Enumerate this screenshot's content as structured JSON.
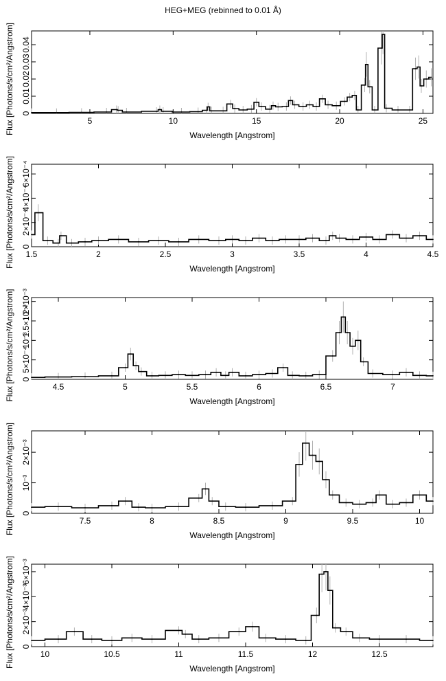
{
  "title": "HEG+MEG (rebinned to 0.01 Å)",
  "chart_data": [
    {
      "type": "line",
      "title": "HEG+MEG (rebinned to 0.01 Å)",
      "xlabel": "Wavelength [Angstrom]",
      "ylabel": "Flux [Photons/s/cm²/Angstrom]",
      "xlim": [
        1.5,
        25.6
      ],
      "ylim": [
        0,
        0.048
      ],
      "xticks": [
        5,
        10,
        15,
        20,
        25
      ],
      "xtick_labels": [
        "5",
        "10",
        "15",
        "20",
        "25"
      ],
      "yticks": [
        0,
        0.01,
        0.02,
        0.03,
        0.04
      ],
      "ytick_labels": [
        "0",
        "0.01",
        "0.02",
        "0.03",
        "0.04"
      ],
      "grid": false,
      "series": [
        {
          "x": [
            1.5,
            3.0,
            4.5,
            6.0,
            6.6,
            6.7,
            7.2,
            9.0,
            9.2,
            9.4,
            10.5,
            11.5,
            12.0,
            12.1,
            12.3,
            13.0,
            13.45,
            13.7,
            14.2,
            14.7,
            15.0,
            15.3,
            15.8,
            16.0,
            16.3,
            16.8,
            17.05,
            17.3,
            17.8,
            18.2,
            18.6,
            18.97,
            19.3,
            19.8,
            20.3,
            20.6,
            20.9,
            21.1,
            21.5,
            21.6,
            21.8,
            22.1,
            22.5,
            22.6,
            22.8,
            23.5,
            24.2,
            24.55,
            24.75,
            24.9,
            25.2,
            25.5
          ],
          "values": [
            0.0005,
            0.0005,
            0.0006,
            0.0008,
            0.0022,
            0.0018,
            0.0008,
            0.0012,
            0.0022,
            0.0012,
            0.0008,
            0.001,
            0.0018,
            0.0038,
            0.0015,
            0.0015,
            0.0055,
            0.0028,
            0.002,
            0.0025,
            0.0065,
            0.004,
            0.0025,
            0.0045,
            0.0038,
            0.004,
            0.0075,
            0.005,
            0.004,
            0.005,
            0.004,
            0.0085,
            0.005,
            0.0045,
            0.007,
            0.0095,
            0.0105,
            0.002,
            0.0165,
            0.0285,
            0.0155,
            0.002,
            0.038,
            0.046,
            0.003,
            0.002,
            0.002,
            0.026,
            0.027,
            0.016,
            0.02,
            0.021
          ]
        }
      ]
    },
    {
      "type": "line",
      "xlabel": "Wavelength [Angstrom]",
      "ylabel": "Flux [Photons/s/cm²/Angstrom]",
      "xlim": [
        1.5,
        4.5
      ],
      "ylim": [
        0,
        0.00068
      ],
      "xticks": [
        1.5,
        2,
        2.5,
        3,
        3.5,
        4,
        4.5
      ],
      "xtick_labels": [
        "1.5",
        "2",
        "2.5",
        "3",
        "3.5",
        "4",
        "4.5"
      ],
      "yticks": [
        0,
        0.0002,
        0.0004,
        0.0006
      ],
      "ytick_labels": [
        "0",
        "2×10⁻⁴",
        "4×10⁻⁴",
        "6×10⁻⁴"
      ],
      "grid": false,
      "series": [
        {
          "x": [
            1.5,
            1.55,
            1.62,
            1.7,
            1.72,
            1.8,
            1.9,
            2.0,
            2.15,
            2.3,
            2.45,
            2.6,
            2.75,
            2.9,
            3.0,
            3.1,
            3.2,
            3.3,
            3.4,
            3.5,
            3.6,
            3.7,
            3.75,
            3.8,
            3.9,
            4.0,
            4.1,
            4.2,
            4.3,
            4.4,
            4.5
          ],
          "values": [
            0.0001,
            0.00028,
            5e-05,
            3e-05,
            9e-05,
            3e-05,
            4e-05,
            5e-05,
            6e-05,
            4e-05,
            5e-05,
            4e-05,
            6e-05,
            5e-05,
            6e-05,
            5e-05,
            7e-05,
            5e-05,
            6e-05,
            6e-05,
            7e-05,
            5e-05,
            9e-05,
            7e-05,
            6e-05,
            8e-05,
            6e-05,
            0.0001,
            7e-05,
            9e-05,
            6e-05
          ]
        }
      ]
    },
    {
      "type": "line",
      "xlabel": "Wavelength [Angstrom]",
      "ylabel": "Flux [Photons/s/cm²/Angstrom]",
      "xlim": [
        4.3,
        7.3
      ],
      "ylim": [
        0,
        0.0021
      ],
      "xticks": [
        4.5,
        5,
        5.5,
        6,
        6.5,
        7
      ],
      "xtick_labels": [
        "4.5",
        "5",
        "5.5",
        "6",
        "6.5",
        "7"
      ],
      "yticks": [
        0,
        0.0005,
        0.001,
        0.0015,
        0.002
      ],
      "ytick_labels": [
        "0",
        "5×10⁻⁴",
        "10⁻³",
        "1.5×10⁻³",
        "2×10⁻³"
      ],
      "grid": false,
      "series": [
        {
          "x": [
            4.3,
            4.5,
            4.7,
            4.9,
            5.0,
            5.04,
            5.08,
            5.12,
            5.2,
            5.3,
            5.4,
            5.5,
            5.6,
            5.68,
            5.75,
            5.8,
            5.9,
            6.0,
            6.1,
            6.18,
            6.25,
            6.35,
            6.45,
            6.55,
            6.6,
            6.63,
            6.66,
            6.7,
            6.74,
            6.78,
            6.85,
            7.0,
            7.1,
            7.2,
            7.3
          ],
          "values": [
            5e-05,
            6e-05,
            7e-05,
            9e-05,
            0.0003,
            0.00065,
            0.00035,
            0.0002,
            9e-05,
            0.0001,
            0.00012,
            0.0001,
            0.00012,
            0.00018,
            0.0001,
            0.00018,
            9e-05,
            0.00012,
            0.00015,
            0.0003,
            0.0001,
            9e-05,
            0.00012,
            0.0006,
            0.0012,
            0.0016,
            0.0012,
            0.00085,
            0.001,
            0.00045,
            0.00015,
            0.00012,
            0.00018,
            0.0001,
            9e-05
          ]
        }
      ]
    },
    {
      "type": "line",
      "xlabel": "Wavelength [Angstrom]",
      "ylabel": "Flux [Photons/s/cm²/Angstrom]",
      "xlim": [
        7.1,
        10.1
      ],
      "ylim": [
        0,
        0.0027
      ],
      "xticks": [
        7.5,
        8,
        8.5,
        9,
        9.5,
        10
      ],
      "xtick_labels": [
        "7.5",
        "8",
        "8.5",
        "9",
        "9.5",
        "10"
      ],
      "yticks": [
        0,
        0.001,
        0.002
      ],
      "ytick_labels": [
        "0",
        "10⁻³",
        "2×10⁻³"
      ],
      "grid": false,
      "series": [
        {
          "x": [
            7.1,
            7.3,
            7.5,
            7.7,
            7.8,
            7.9,
            8.0,
            8.2,
            8.35,
            8.4,
            8.45,
            8.55,
            8.7,
            8.9,
            9.05,
            9.1,
            9.15,
            9.2,
            9.25,
            9.3,
            9.35,
            9.45,
            9.55,
            9.65,
            9.7,
            9.8,
            9.9,
            10.0,
            10.1
          ],
          "values": [
            0.0002,
            0.00022,
            0.00018,
            0.00025,
            0.0004,
            0.0002,
            0.00018,
            0.00022,
            0.0005,
            0.0008,
            0.0004,
            0.00022,
            0.0002,
            0.00025,
            0.0004,
            0.0016,
            0.0023,
            0.0019,
            0.0017,
            0.0011,
            0.0006,
            0.00035,
            0.0003,
            0.00035,
            0.0006,
            0.0003,
            0.00035,
            0.0006,
            0.0004
          ]
        }
      ]
    },
    {
      "type": "line",
      "xlabel": "Wavelength [Angstrom]",
      "ylabel": "Flux [Photons/s/cm²/Angstrom]",
      "xlim": [
        9.9,
        12.9
      ],
      "ylim": [
        0,
        0.0066
      ],
      "xticks": [
        10,
        10.5,
        11,
        11.5,
        12,
        12.5
      ],
      "xtick_labels": [
        "10",
        "10.5",
        "11",
        "11.5",
        "12",
        "12.5"
      ],
      "yticks": [
        0,
        0.002,
        0.004,
        0.006
      ],
      "ytick_labels": [
        "0",
        "2×10⁻³",
        "4×10⁻³",
        "6×10⁻³"
      ],
      "grid": false,
      "series": [
        {
          "x": [
            9.9,
            10.1,
            10.22,
            10.35,
            10.5,
            10.65,
            10.8,
            11.0,
            11.05,
            11.15,
            11.3,
            11.45,
            11.55,
            11.65,
            11.8,
            11.95,
            12.03,
            12.07,
            12.1,
            12.13,
            12.17,
            12.25,
            12.35,
            12.5,
            12.7,
            12.9
          ],
          "values": [
            0.0005,
            0.0006,
            0.0012,
            0.0006,
            0.0005,
            0.0007,
            0.0006,
            0.0013,
            0.001,
            0.0006,
            0.0007,
            0.0012,
            0.0016,
            0.0007,
            0.0006,
            0.0005,
            0.0025,
            0.0058,
            0.006,
            0.0045,
            0.0015,
            0.0012,
            0.0007,
            0.0006,
            0.0006,
            0.0005
          ]
        }
      ]
    }
  ]
}
